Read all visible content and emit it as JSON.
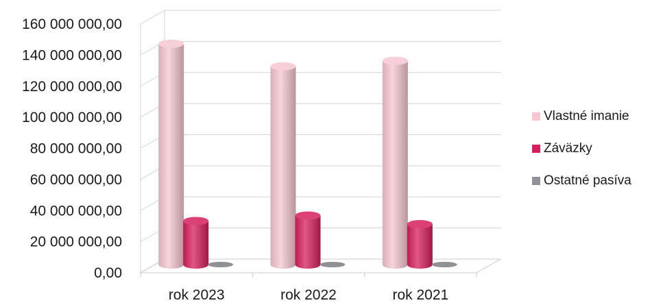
{
  "chart_data": {
    "type": "bar",
    "title": "",
    "xlabel": "",
    "ylabel": "",
    "categories": [
      "rok 2023",
      "rok 2022",
      "rok 2021"
    ],
    "series": [
      {
        "name": "Vlastné imanie",
        "values": [
          142000000,
          127500000,
          131000000
        ],
        "color": "#f6c6d2"
      },
      {
        "name": "Záväzky",
        "values": [
          28000000,
          31500000,
          26000000
        ],
        "color": "#d61f5d"
      },
      {
        "name": "Ostatné pasíva",
        "values": [
          0,
          0,
          0
        ],
        "color": "#8f9196"
      }
    ],
    "ylim": [
      0,
      160000000
    ],
    "yticks": [
      "0,00",
      "20 000 000,00",
      "40 000 000,00",
      "60 000 000,00",
      "80 000 000,00",
      "100 000 000,00",
      "120 000 000,00",
      "140 000 000,00",
      "160 000 000,00"
    ],
    "grid": true,
    "legend_position": "right",
    "style": "3d-cylinder"
  }
}
